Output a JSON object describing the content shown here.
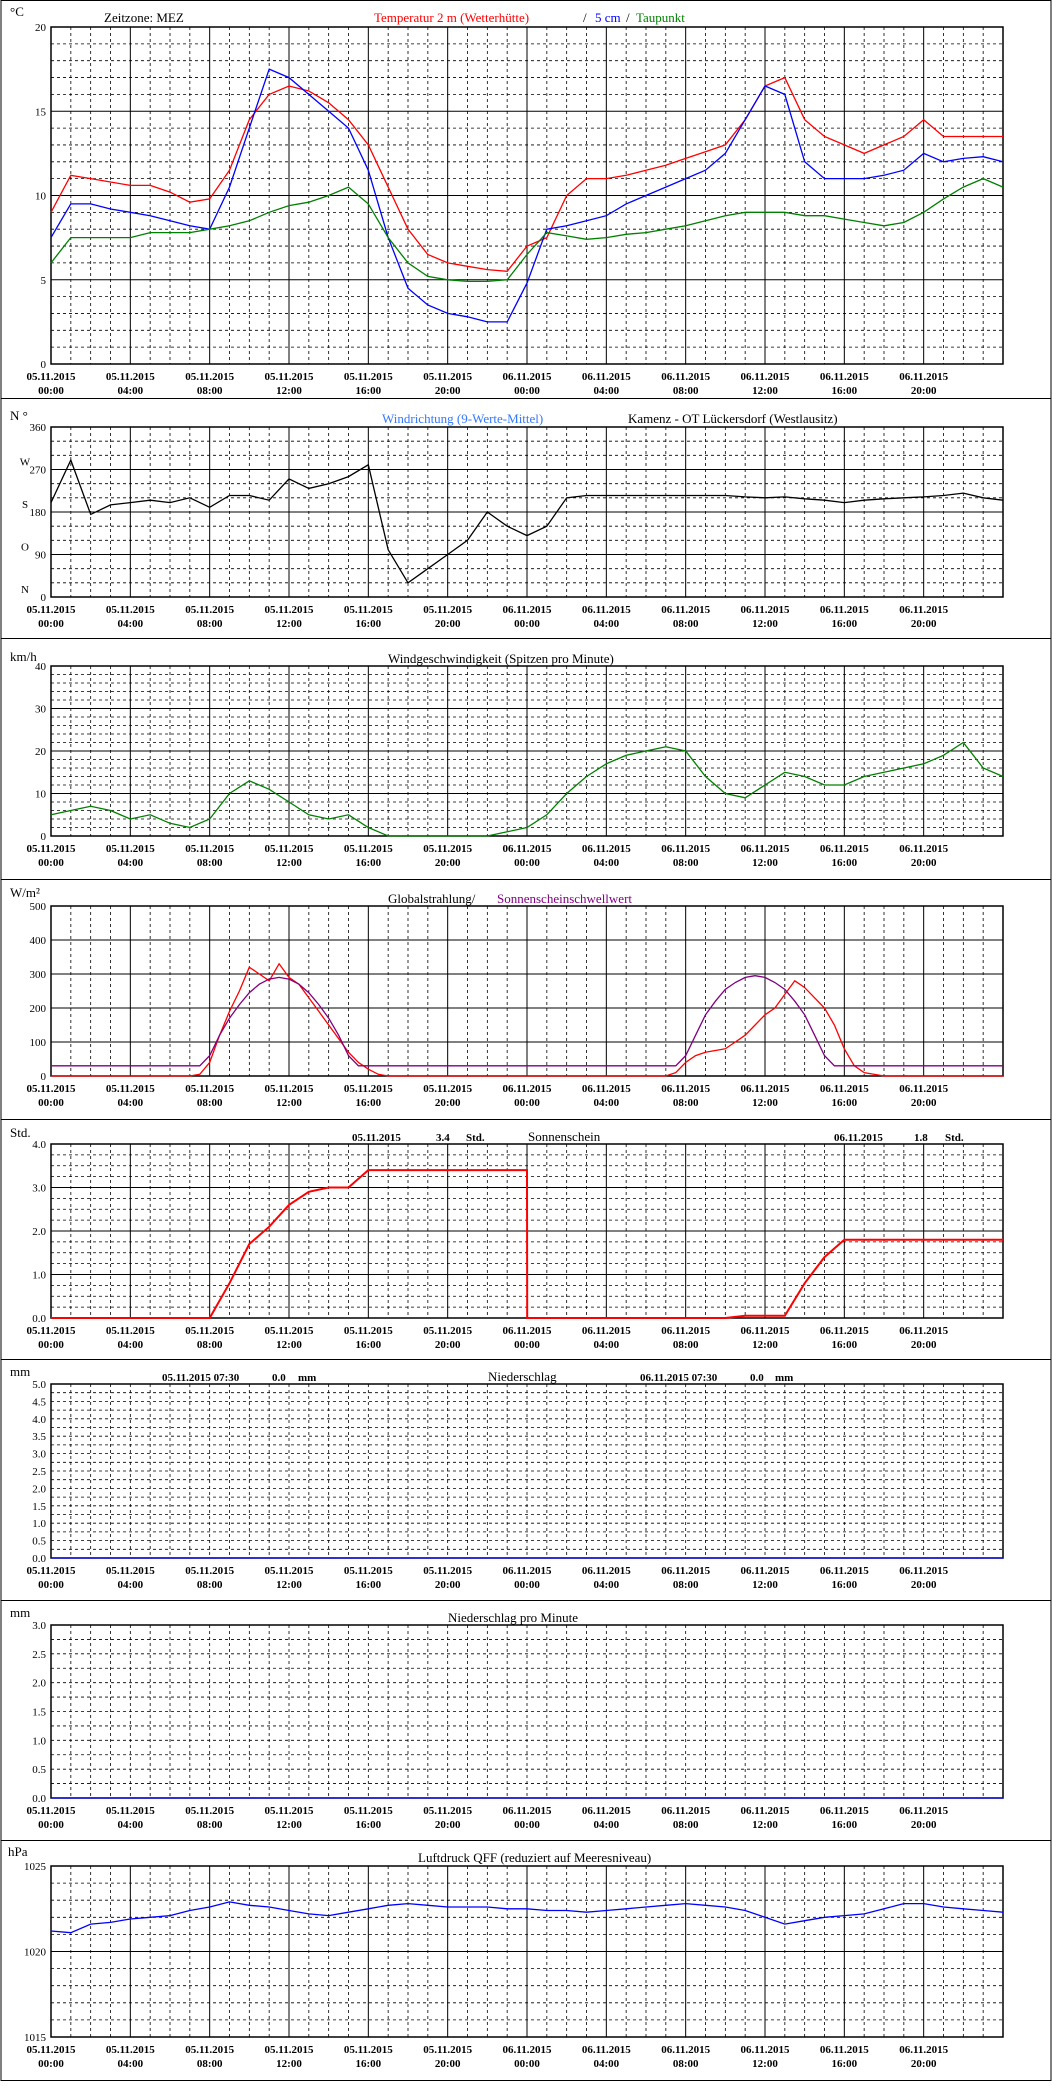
{
  "x_ticks": [
    [
      "05.11.2015",
      "00:00"
    ],
    [
      "05.11.2015",
      "04:00"
    ],
    [
      "05.11.2015",
      "08:00"
    ],
    [
      "05.11.2015",
      "12:00"
    ],
    [
      "05.11.2015",
      "16:00"
    ],
    [
      "05.11.2015",
      "20:00"
    ],
    [
      "06.11.2015",
      "00:00"
    ],
    [
      "06.11.2015",
      "04:00"
    ],
    [
      "06.11.2015",
      "08:00"
    ],
    [
      "06.11.2015",
      "12:00"
    ],
    [
      "06.11.2015",
      "16:00"
    ],
    [
      "06.11.2015",
      "20:00"
    ]
  ],
  "x_axis": {
    "unit": "hours since 05.11.2015 00:00",
    "range": [
      0,
      48
    ]
  },
  "colors": {
    "red": "#ff0000",
    "blue": "#0000ff",
    "lightblue": "#3377ff",
    "green": "#008000",
    "darkgreen": "#006400",
    "purple": "#800080",
    "black": "#000000"
  },
  "panels": {
    "temperature": {
      "unit": "°C",
      "timezone": "Zeitzone: MEZ",
      "legend_red": "Temperatur 2 m (Wetterhütte)",
      "legend_sep": "/",
      "legend_blue": "5 cm",
      "legend_sep2": "/",
      "legend_green": "Taupunkt",
      "ylim": [
        0,
        20
      ],
      "y_ticks": [
        "0",
        "5",
        "10",
        "15",
        "20"
      ]
    },
    "wind_direction": {
      "unit": "N °",
      "title_blue": "Windrichtung (9-Werte-Mittel)",
      "title_black": "Kamenz - OT Lückersdorf (Westlausitz)",
      "ylim": [
        0,
        360
      ],
      "y_ticks": [
        "0",
        "90",
        "180",
        "270",
        "360"
      ],
      "y_letters": [
        "N",
        "O",
        "S",
        "W"
      ]
    },
    "wind_speed": {
      "unit": "km/h",
      "title": "Windgeschwindigkeit (Spitzen pro Minute)",
      "ylim": [
        0,
        40
      ],
      "y_ticks": [
        "0",
        "10",
        "20",
        "30",
        "40"
      ]
    },
    "radiation": {
      "unit": "W/m²",
      "title_black": "Globalstrahlung/",
      "title_purple": "Sonnenscheinschwellwert",
      "ylim": [
        0,
        500
      ],
      "y_ticks": [
        "0",
        "100",
        "200",
        "300",
        "400",
        "500"
      ]
    },
    "sunshine": {
      "unit": "Std.",
      "title": "Sonnenschein",
      "day1_date": "05.11.2015",
      "day1_value": "3.4",
      "day1_unit": "Std.",
      "day2_date": "06.11.2015",
      "day2_value": "1.8",
      "day2_unit": "Std.",
      "ylim": [
        0,
        4
      ],
      "y_ticks": [
        "0.0",
        "1.0",
        "2.0",
        "3.0",
        "4.0"
      ]
    },
    "precipitation": {
      "unit": "mm",
      "title": "Niederschlag",
      "day1_date": "05.11.2015 07:30",
      "day1_value": "0.0",
      "day1_unit": "mm",
      "day2_date": "06.11.2015 07:30",
      "day2_value": "0.0",
      "day2_unit": "mm",
      "ylim": [
        0,
        5
      ],
      "y_ticks": [
        "0.0",
        "0.5",
        "1.0",
        "1.5",
        "2.0",
        "2.5",
        "3.0",
        "3.5",
        "4.0",
        "4.5",
        "5.0"
      ]
    },
    "precip_minute": {
      "unit": "mm",
      "title": "Niederschlag pro Minute",
      "ylim": [
        0,
        3
      ],
      "y_ticks": [
        "0.0",
        "0.5",
        "1.0",
        "1.5",
        "2.0",
        "2.5",
        "3.0"
      ]
    },
    "pressure": {
      "unit": "hPa",
      "title": "Luftdruck QFF (reduziert auf Meeresniveau)",
      "ylim": [
        1015,
        1025
      ],
      "y_ticks": [
        "1015",
        "1020",
        "1025"
      ]
    }
  },
  "chart_data": [
    {
      "type": "line",
      "x": [
        0,
        1,
        2,
        3,
        4,
        5,
        6,
        7,
        8,
        9,
        10,
        11,
        12,
        13,
        14,
        15,
        16,
        17,
        18,
        19,
        20,
        21,
        22,
        23,
        24,
        25,
        26,
        27,
        28,
        29,
        30,
        31,
        32,
        33,
        34,
        35,
        36,
        37,
        38,
        39,
        40,
        41,
        42,
        43,
        44,
        45,
        46,
        47,
        48
      ],
      "series": [
        {
          "name": "Temperatur 2 m (Wetterhütte)",
          "color": "red",
          "values": [
            9,
            11.2,
            11,
            10.8,
            10.6,
            10.6,
            10.2,
            9.6,
            9.8,
            11.5,
            14.5,
            16,
            16.5,
            16.2,
            15.5,
            14.5,
            13,
            10.5,
            8,
            6.5,
            6,
            5.8,
            5.6,
            5.5,
            7,
            7.5,
            10,
            11,
            11,
            11.2,
            11.5,
            11.8,
            12.2,
            12.6,
            13,
            14.5,
            16.5,
            17,
            14.5,
            13.5,
            13,
            12.5,
            13,
            13.5,
            14.5,
            13.5,
            13.5,
            13.5,
            13.5
          ]
        },
        {
          "name": "5 cm",
          "color": "blue",
          "values": [
            7.5,
            9.5,
            9.5,
            9.2,
            9,
            8.8,
            8.5,
            8.2,
            8,
            10.5,
            14,
            17.5,
            17,
            16,
            15,
            14,
            11.5,
            7.5,
            4.5,
            3.5,
            3,
            2.8,
            2.5,
            2.5,
            4.8,
            8,
            8.2,
            8.5,
            8.8,
            9.5,
            10,
            10.5,
            11,
            11.5,
            12.5,
            14.5,
            16.5,
            16,
            12,
            11,
            11,
            11,
            11.2,
            11.5,
            12.5,
            12,
            12.2,
            12.3,
            12
          ]
        },
        {
          "name": "Taupunkt",
          "color": "green",
          "values": [
            6,
            7.5,
            7.5,
            7.5,
            7.5,
            7.8,
            7.8,
            7.8,
            8,
            8.2,
            8.5,
            9,
            9.4,
            9.6,
            10,
            10.5,
            9.5,
            7.5,
            6,
            5.2,
            5,
            4.9,
            4.9,
            5,
            6.5,
            7.8,
            7.6,
            7.4,
            7.5,
            7.7,
            7.8,
            8,
            8.2,
            8.5,
            8.8,
            9,
            9,
            9,
            8.8,
            8.8,
            8.6,
            8.4,
            8.2,
            8.4,
            9,
            9.8,
            10.5,
            11,
            10.5
          ]
        }
      ]
    },
    {
      "type": "line",
      "x": [
        0,
        1,
        2,
        3,
        4,
        5,
        6,
        7,
        8,
        9,
        10,
        11,
        12,
        13,
        14,
        15,
        16,
        17,
        18,
        19,
        20,
        21,
        22,
        23,
        24,
        25,
        26,
        27,
        28,
        29,
        30,
        31,
        32,
        33,
        34,
        35,
        36,
        37,
        38,
        39,
        40,
        41,
        42,
        43,
        44,
        45,
        46,
        47,
        48
      ],
      "series": [
        {
          "name": "Windrichtung",
          "color": "black",
          "values": [
            200,
            290,
            175,
            195,
            200,
            205,
            200,
            210,
            190,
            215,
            215,
            205,
            250,
            230,
            240,
            255,
            280,
            100,
            30,
            60,
            90,
            120,
            180,
            150,
            130,
            150,
            210,
            215,
            215,
            215,
            215,
            215,
            215,
            215,
            215,
            212,
            210,
            212,
            208,
            205,
            200,
            205,
            208,
            210,
            212,
            215,
            220,
            210,
            205
          ]
        }
      ]
    },
    {
      "type": "line",
      "x": [
        0,
        1,
        2,
        3,
        4,
        5,
        6,
        7,
        8,
        9,
        10,
        11,
        12,
        13,
        14,
        15,
        16,
        17,
        18,
        19,
        20,
        21,
        22,
        23,
        24,
        25,
        26,
        27,
        28,
        29,
        30,
        31,
        32,
        33,
        34,
        35,
        36,
        37,
        38,
        39,
        40,
        41,
        42,
        43,
        44,
        45,
        46,
        47,
        48
      ],
      "series": [
        {
          "name": "Windgeschwindigkeit",
          "color": "green",
          "values": [
            5,
            6,
            7,
            6,
            4,
            5,
            3,
            2,
            4,
            10,
            13,
            11,
            8,
            5,
            4,
            5,
            2,
            0,
            0,
            0,
            0,
            0,
            0,
            1,
            2,
            5,
            10,
            14,
            17,
            19,
            20,
            21,
            20,
            14,
            10,
            9,
            12,
            15,
            14,
            12,
            12,
            14,
            15,
            16,
            17,
            19,
            22,
            16,
            14
          ]
        }
      ]
    },
    {
      "type": "line",
      "x": [
        0,
        1,
        2,
        3,
        4,
        5,
        6,
        6.5,
        7,
        7.5,
        8,
        8.5,
        9,
        9.5,
        10,
        10.5,
        11,
        11.5,
        12,
        12.5,
        13,
        13.5,
        14,
        14.5,
        15,
        15.5,
        16,
        16.5,
        17,
        18,
        20,
        22,
        24,
        26,
        28,
        30,
        31,
        31.5,
        32,
        32.5,
        33,
        33.5,
        34,
        34.5,
        35,
        35.5,
        36,
        36.5,
        37,
        37.5,
        38,
        38.5,
        39,
        39.5,
        40,
        40.5,
        41,
        42,
        44,
        46,
        48
      ],
      "series": [
        {
          "name": "Globalstrahlung",
          "color": "red",
          "values": [
            0,
            0,
            0,
            0,
            0,
            0,
            0,
            0,
            0,
            5,
            40,
            120,
            190,
            250,
            320,
            300,
            280,
            330,
            290,
            270,
            230,
            190,
            150,
            110,
            70,
            40,
            20,
            5,
            0,
            0,
            0,
            0,
            0,
            0,
            0,
            0,
            0,
            10,
            40,
            60,
            70,
            75,
            80,
            100,
            120,
            150,
            180,
            200,
            240,
            280,
            260,
            230,
            200,
            150,
            80,
            30,
            10,
            0,
            0,
            0,
            0
          ]
        },
        {
          "name": "Sonnenscheinschwellwert",
          "color": "purple",
          "values": [
            30,
            30,
            30,
            30,
            30,
            30,
            30,
            30,
            30,
            30,
            60,
            120,
            170,
            210,
            245,
            270,
            285,
            290,
            285,
            270,
            245,
            210,
            170,
            120,
            60,
            30,
            30,
            30,
            30,
            30,
            30,
            30,
            30,
            30,
            30,
            30,
            30,
            30,
            60,
            120,
            180,
            220,
            255,
            275,
            290,
            295,
            290,
            275,
            255,
            220,
            180,
            120,
            60,
            30,
            30,
            30,
            30,
            30,
            30,
            30,
            30
          ]
        }
      ]
    },
    {
      "type": "line",
      "x": [
        0,
        8,
        9,
        10,
        11,
        12,
        13,
        14,
        15,
        16,
        17,
        18,
        19,
        20,
        21,
        22,
        23,
        24,
        24.01,
        25,
        26,
        27,
        28,
        29,
        30,
        31,
        32,
        33,
        34,
        35,
        36,
        37,
        38,
        39,
        40,
        41,
        42,
        44,
        46,
        48
      ],
      "series": [
        {
          "name": "Sonnenschein",
          "color": "red",
          "values": [
            0,
            0,
            0.8,
            1.7,
            2.1,
            2.6,
            2.9,
            3.0,
            3.0,
            3.4,
            3.4,
            3.4,
            3.4,
            3.4,
            3.4,
            3.4,
            3.4,
            3.4,
            0,
            0,
            0,
            0,
            0,
            0,
            0,
            0,
            0,
            0,
            0,
            0.05,
            0.05,
            0.05,
            0.8,
            1.4,
            1.8,
            1.8,
            1.8,
            1.8,
            1.8,
            1.8
          ]
        }
      ]
    },
    {
      "type": "line",
      "x": [
        0,
        48
      ],
      "series": [
        {
          "name": "Niederschlag",
          "color": "blue",
          "values": [
            0,
            0
          ]
        }
      ]
    },
    {
      "type": "line",
      "x": [
        0,
        48
      ],
      "series": [
        {
          "name": "Niederschlag pro Minute",
          "color": "blue",
          "values": [
            0,
            0
          ]
        }
      ]
    },
    {
      "type": "line",
      "x": [
        0,
        1,
        2,
        3,
        4,
        5,
        6,
        7,
        8,
        9,
        10,
        11,
        12,
        13,
        14,
        15,
        16,
        17,
        18,
        19,
        20,
        21,
        22,
        23,
        24,
        25,
        26,
        27,
        28,
        29,
        30,
        31,
        32,
        33,
        34,
        35,
        36,
        37,
        38,
        39,
        40,
        41,
        42,
        43,
        44,
        45,
        46,
        47,
        48
      ],
      "series": [
        {
          "name": "Luftdruck QFF",
          "color": "blue",
          "values": [
            1021.2,
            1021.1,
            1021.6,
            1021.7,
            1021.9,
            1022.0,
            1022.1,
            1022.4,
            1022.6,
            1022.9,
            1022.7,
            1022.6,
            1022.4,
            1022.2,
            1022.1,
            1022.3,
            1022.5,
            1022.7,
            1022.8,
            1022.7,
            1022.6,
            1022.6,
            1022.6,
            1022.5,
            1022.5,
            1022.4,
            1022.4,
            1022.3,
            1022.4,
            1022.5,
            1022.6,
            1022.7,
            1022.8,
            1022.7,
            1022.6,
            1022.4,
            1022.0,
            1021.6,
            1021.8,
            1022.0,
            1022.1,
            1022.2,
            1022.5,
            1022.8,
            1022.8,
            1022.6,
            1022.5,
            1022.4,
            1022.3
          ]
        }
      ]
    }
  ]
}
